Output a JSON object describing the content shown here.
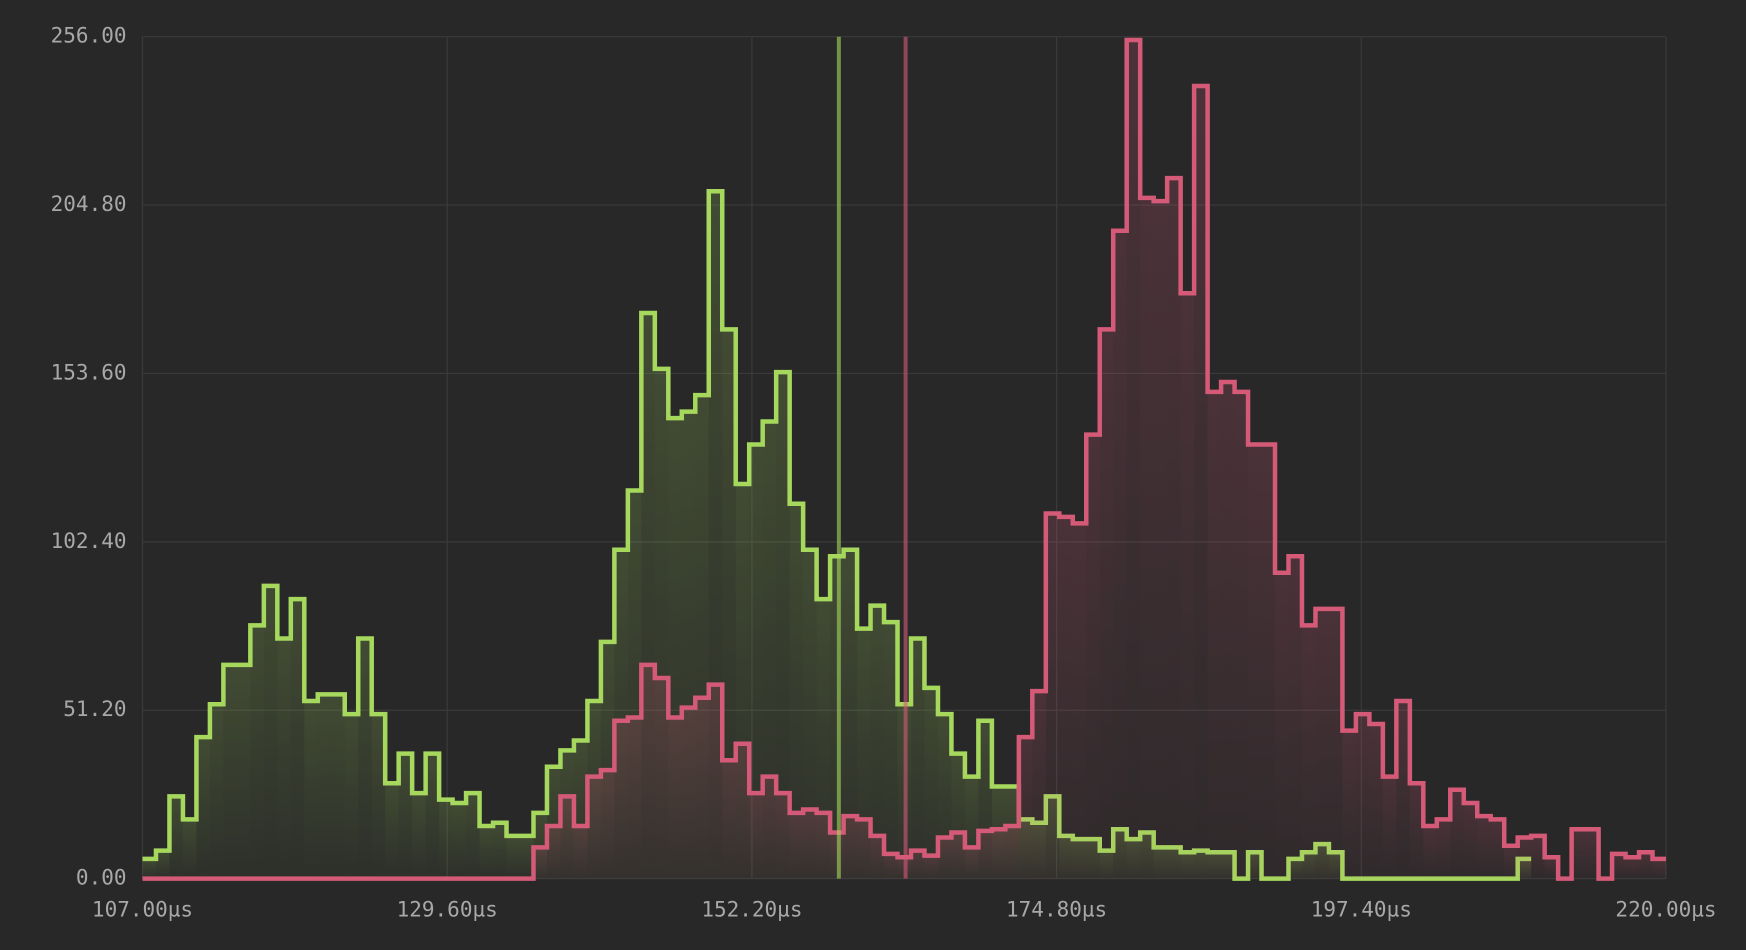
{
  "chart_data": {
    "type": "histogram",
    "bins": [
      107,
      108,
      109,
      110,
      111,
      112,
      113,
      114,
      115,
      116,
      117,
      118,
      119,
      120,
      121,
      122,
      123,
      124,
      125,
      126,
      127,
      128,
      129,
      130,
      131,
      132,
      133,
      134,
      135,
      136,
      137,
      138,
      139,
      140,
      141,
      142,
      143,
      144,
      145,
      146,
      147,
      148,
      149,
      150,
      151,
      152,
      153,
      154,
      155,
      156,
      157,
      158,
      159,
      160,
      161,
      162,
      163,
      164,
      165,
      166,
      167,
      168,
      169,
      170,
      171,
      172,
      173,
      174,
      175,
      176,
      177,
      178,
      179,
      180,
      181,
      182,
      183,
      184,
      185,
      186,
      187,
      188,
      189,
      190,
      191,
      192,
      193,
      194,
      195,
      196,
      197,
      198,
      199,
      200,
      201,
      202,
      203,
      204,
      205,
      206,
      207,
      208,
      209,
      210,
      211,
      212,
      213,
      214,
      215,
      216,
      217,
      218,
      219,
      220
    ],
    "series": [
      {
        "color": "#a6d85e",
        "mean": 158.65,
        "values": [
          6,
          8.5,
          25,
          18,
          43,
          53,
          65,
          65,
          77,
          89,
          73,
          85,
          54,
          56,
          56,
          50,
          73,
          50,
          29,
          38,
          26,
          38,
          24,
          23,
          26,
          16,
          17,
          13,
          13,
          20,
          34,
          39,
          42,
          54,
          72,
          100,
          118,
          172,
          155,
          140,
          142,
          147,
          209,
          167,
          120,
          132,
          139,
          154,
          114,
          100,
          85,
          98,
          100,
          76,
          83,
          78,
          53,
          73,
          58,
          50,
          38,
          31,
          48,
          28,
          28,
          18,
          17,
          25,
          13,
          12,
          12,
          8.5,
          15,
          12,
          14,
          9.5,
          9.5,
          8,
          8.5,
          8,
          8,
          0,
          8,
          0,
          0,
          6,
          8,
          10.5,
          8,
          0,
          0,
          0,
          0,
          0,
          0,
          0,
          0,
          0,
          0,
          0,
          0,
          0,
          6,
          null,
          null,
          null,
          null,
          null,
          null,
          null,
          null,
          null,
          null
        ]
      },
      {
        "color": "#d45a78",
        "mean": 163.6,
        "values": [
          0,
          0,
          0,
          0,
          0,
          0,
          0,
          0,
          0,
          0,
          0,
          0,
          0,
          0,
          0,
          0,
          0,
          0,
          0,
          0,
          0,
          0,
          0,
          0,
          0,
          0,
          0,
          0,
          0,
          9.5,
          16,
          25,
          16,
          31,
          33,
          48,
          49,
          65,
          61,
          49,
          52,
          55,
          59,
          36,
          41,
          26,
          31,
          26,
          20,
          21,
          20,
          14,
          19,
          18,
          13,
          7.5,
          6.5,
          8.5,
          7,
          12.5,
          14,
          9.5,
          14.5,
          15,
          16,
          43,
          57,
          111,
          110,
          108,
          135,
          167,
          197,
          255,
          207,
          206,
          213,
          178,
          241,
          148,
          151,
          148,
          132,
          132,
          93,
          98,
          77,
          82,
          82,
          45,
          50,
          47,
          31,
          54,
          29,
          16,
          18,
          27,
          23,
          19,
          18,
          10,
          12.5,
          13,
          6.5,
          0,
          15,
          15,
          0,
          7.5,
          6.5,
          8,
          6
        ]
      }
    ],
    "xlim": [
      107,
      220
    ],
    "ylim": [
      0,
      256
    ],
    "xticks": [
      {
        "value": 107,
        "label": "107.00µs"
      },
      {
        "value": 129.6,
        "label": "129.60µs"
      },
      {
        "value": 152.2,
        "label": "152.20µs"
      },
      {
        "value": 174.8,
        "label": "174.80µs"
      },
      {
        "value": 197.4,
        "label": "197.40µs"
      },
      {
        "value": 220,
        "label": "220.00µs"
      }
    ],
    "yticks": [
      {
        "value": 0,
        "label": "0.00"
      },
      {
        "value": 51.2,
        "label": "51.20"
      },
      {
        "value": 102.4,
        "label": "102.40"
      },
      {
        "value": 153.6,
        "label": "153.60"
      },
      {
        "value": 204.8,
        "label": "204.80"
      },
      {
        "value": 256,
        "label": "256.00"
      }
    ],
    "grid": true
  }
}
